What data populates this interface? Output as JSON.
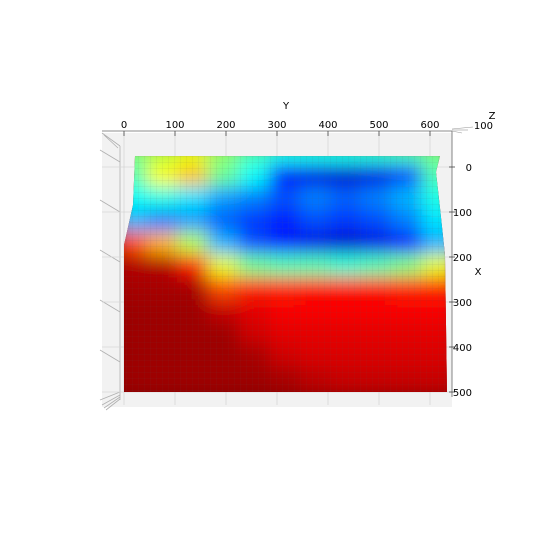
{
  "chart_data": {
    "type": "surface3d",
    "title": "",
    "colormap": "jet",
    "view": "top-down",
    "axes": {
      "y": {
        "label": "Y",
        "ticks": [
          0,
          100,
          200,
          300,
          400,
          500,
          600
        ],
        "lim": [
          -40,
          640
        ]
      },
      "x": {
        "label": "X",
        "ticks": [
          0,
          100,
          200,
          300,
          400,
          500
        ],
        "lim": [
          -25,
          500
        ]
      },
      "z": {
        "label": "Z",
        "ticks": [
          100
        ]
      }
    },
    "surface": {
      "y_range": [
        0,
        630
      ],
      "x_range": [
        -25,
        500
      ],
      "x_samples": [
        -25,
        25,
        75,
        125,
        175,
        225,
        275,
        325,
        375,
        425,
        475
      ],
      "y_samples": [
        20,
        80,
        140,
        200,
        260,
        320,
        380,
        440,
        500,
        560,
        620
      ],
      "values": [
        [
          0.5,
          0.55,
          0.6,
          0.52,
          0.45,
          0.4,
          0.4,
          0.4,
          0.42,
          0.45,
          0.5
        ],
        [
          0.45,
          0.62,
          0.68,
          0.48,
          0.38,
          0.15,
          0.1,
          0.08,
          0.1,
          0.2,
          0.45
        ],
        [
          0.38,
          0.4,
          0.35,
          0.28,
          0.25,
          0.2,
          0.25,
          0.22,
          0.25,
          0.3,
          0.4
        ],
        [
          0.3,
          0.25,
          0.28,
          0.22,
          0.18,
          0.15,
          0.2,
          0.18,
          0.2,
          0.25,
          0.35
        ],
        [
          0.8,
          0.7,
          0.55,
          0.3,
          0.2,
          0.15,
          0.1,
          0.08,
          0.1,
          0.15,
          0.3
        ],
        [
          0.95,
          0.95,
          0.85,
          0.6,
          0.48,
          0.45,
          0.45,
          0.42,
          0.45,
          0.5,
          0.6
        ],
        [
          0.96,
          0.96,
          0.96,
          0.8,
          0.85,
          0.85,
          0.86,
          0.86,
          0.86,
          0.85,
          0.85
        ],
        [
          0.97,
          0.97,
          0.97,
          0.93,
          0.9,
          0.88,
          0.88,
          0.88,
          0.88,
          0.88,
          0.88
        ],
        [
          0.97,
          0.97,
          0.97,
          0.97,
          0.92,
          0.9,
          0.9,
          0.9,
          0.9,
          0.9,
          0.9
        ],
        [
          0.97,
          0.97,
          0.97,
          0.97,
          0.96,
          0.92,
          0.91,
          0.91,
          0.91,
          0.91,
          0.91
        ],
        [
          0.97,
          0.97,
          0.97,
          0.97,
          0.97,
          0.96,
          0.94,
          0.93,
          0.93,
          0.93,
          0.93
        ]
      ]
    }
  }
}
